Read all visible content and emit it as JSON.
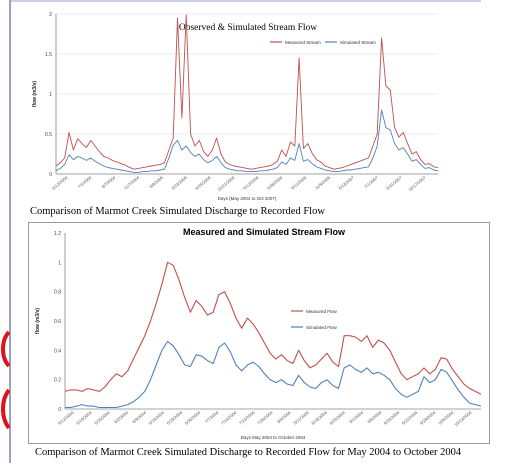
{
  "colors": {
    "measured": "#c0504d",
    "simulated": "#4f81bd",
    "frame_rule": "#9aa0c8",
    "accent_red": "#e0121b"
  },
  "captions": {
    "top": "Comparison of  Marmot Creek Simulated Discharge to Recorded Flow",
    "bottom": "Comparison of  Marmot Creek Simulated Discharge to Recorded Flow for May 2004 to October 2004"
  },
  "chart_data": [
    {
      "type": "line",
      "title": "Observed & Simulated Stream Flow",
      "xlabel": "Days (May 2004 to Oct 2007)",
      "ylabel": "flow (m3/s)",
      "ylim": [
        0,
        2
      ],
      "y_ticks": [
        "0",
        "0.5",
        "1",
        "1.5",
        "2"
      ],
      "x_ticks": [
        "5/12/2004",
        "7/1/2004",
        "9/7/2004",
        "11/7/2004",
        "5/9/2005",
        "6/23/2005",
        "8/25/2005",
        "10/21/2005",
        "5/12/2006",
        "6/28/2006",
        "9/11/2006",
        "11/9/2006",
        "5/13/2007",
        "7/1/2007",
        "8/31/2007",
        "10/17/2007"
      ],
      "legend": "top-right",
      "series": [
        {
          "name": "Measured Stream",
          "values": [
            0.1,
            0.14,
            0.2,
            0.52,
            0.3,
            0.44,
            0.38,
            0.33,
            0.42,
            0.35,
            0.28,
            0.22,
            0.2,
            0.17,
            0.15,
            0.13,
            0.11,
            0.08,
            0.06,
            0.07,
            0.08,
            0.09,
            0.1,
            0.11,
            0.12,
            0.14,
            0.3,
            0.45,
            1.95,
            0.7,
            1.99,
            0.5,
            0.35,
            0.42,
            0.28,
            0.22,
            0.3,
            0.45,
            0.25,
            0.15,
            0.12,
            0.1,
            0.09,
            0.08,
            0.07,
            0.06,
            0.07,
            0.08,
            0.09,
            0.1,
            0.12,
            0.16,
            0.3,
            0.22,
            0.4,
            0.35,
            1.45,
            0.32,
            0.38,
            0.26,
            0.18,
            0.15,
            0.1,
            0.08,
            0.06,
            0.07,
            0.08,
            0.1,
            0.12,
            0.14,
            0.16,
            0.18,
            0.2,
            0.35,
            0.5,
            1.7,
            1.1,
            1.05,
            0.58,
            0.46,
            0.52,
            0.38,
            0.25,
            0.28,
            0.18,
            0.12,
            0.13,
            0.09,
            0.08
          ]
        },
        {
          "name": "Simulated Stream",
          "values": [
            0.04,
            0.07,
            0.12,
            0.24,
            0.18,
            0.22,
            0.2,
            0.17,
            0.2,
            0.16,
            0.13,
            0.1,
            0.08,
            0.07,
            0.06,
            0.05,
            0.04,
            0.03,
            0.02,
            0.02,
            0.03,
            0.03,
            0.04,
            0.04,
            0.05,
            0.06,
            0.2,
            0.36,
            0.42,
            0.3,
            0.35,
            0.27,
            0.22,
            0.25,
            0.18,
            0.14,
            0.17,
            0.22,
            0.14,
            0.08,
            0.06,
            0.05,
            0.04,
            0.04,
            0.03,
            0.03,
            0.03,
            0.04,
            0.04,
            0.05,
            0.06,
            0.08,
            0.15,
            0.12,
            0.2,
            0.17,
            0.38,
            0.16,
            0.18,
            0.13,
            0.09,
            0.07,
            0.05,
            0.04,
            0.03,
            0.03,
            0.04,
            0.05,
            0.05,
            0.06,
            0.07,
            0.08,
            0.09,
            0.2,
            0.35,
            0.8,
            0.58,
            0.55,
            0.38,
            0.3,
            0.33,
            0.25,
            0.16,
            0.18,
            0.12,
            0.07,
            0.08,
            0.05,
            0.04
          ]
        }
      ]
    },
    {
      "type": "line",
      "title": "Measured and Simulated Stream Flow",
      "xlabel": "Days May 2004 to October 2004",
      "ylabel": "flow (m3/s)",
      "ylim": [
        0,
        1.2
      ],
      "y_ticks": [
        "0",
        "0.2",
        "0.4",
        "0.6",
        "0.8",
        "1",
        "1.2"
      ],
      "x_ticks": [
        "5/12/2004",
        "5/19/2004",
        "5/26/2004",
        "6/2/2004",
        "6/9/2004",
        "6/16/2004",
        "6/23/2004",
        "6/30/2004",
        "7/7/2004",
        "7/14/2004",
        "7/21/2004",
        "7/28/2004",
        "8/4/2004",
        "8/11/2004",
        "8/18/2004",
        "8/25/2004",
        "9/1/2004",
        "9/8/2004",
        "9/15/2004",
        "9/22/2004",
        "9/29/2004",
        "10/6/2004",
        "10/13/2004"
      ],
      "legend": "center-right",
      "series": [
        {
          "name": "Measured Flow",
          "values": [
            0.12,
            0.13,
            0.13,
            0.12,
            0.14,
            0.13,
            0.12,
            0.15,
            0.2,
            0.24,
            0.22,
            0.26,
            0.34,
            0.42,
            0.5,
            0.6,
            0.72,
            0.85,
            1.0,
            0.98,
            0.88,
            0.76,
            0.66,
            0.74,
            0.7,
            0.64,
            0.66,
            0.78,
            0.8,
            0.72,
            0.62,
            0.55,
            0.62,
            0.58,
            0.52,
            0.45,
            0.38,
            0.34,
            0.37,
            0.33,
            0.31,
            0.4,
            0.33,
            0.28,
            0.3,
            0.34,
            0.38,
            0.32,
            0.29,
            0.5,
            0.5,
            0.49,
            0.46,
            0.5,
            0.42,
            0.47,
            0.45,
            0.4,
            0.32,
            0.24,
            0.2,
            0.22,
            0.24,
            0.28,
            0.24,
            0.27,
            0.35,
            0.34,
            0.27,
            0.22,
            0.17,
            0.14,
            0.12,
            0.1
          ]
        },
        {
          "name": "Simulated Flow",
          "values": [
            0.01,
            0.01,
            0.02,
            0.03,
            0.02,
            0.02,
            0.01,
            0.01,
            0.01,
            0.01,
            0.02,
            0.03,
            0.05,
            0.08,
            0.12,
            0.2,
            0.3,
            0.4,
            0.46,
            0.43,
            0.37,
            0.3,
            0.29,
            0.37,
            0.36,
            0.33,
            0.31,
            0.42,
            0.45,
            0.39,
            0.3,
            0.26,
            0.3,
            0.32,
            0.29,
            0.24,
            0.2,
            0.18,
            0.2,
            0.17,
            0.16,
            0.23,
            0.18,
            0.15,
            0.14,
            0.18,
            0.2,
            0.16,
            0.14,
            0.28,
            0.3,
            0.27,
            0.25,
            0.28,
            0.24,
            0.25,
            0.23,
            0.2,
            0.14,
            0.1,
            0.08,
            0.1,
            0.12,
            0.22,
            0.18,
            0.2,
            0.27,
            0.25,
            0.19,
            0.13,
            0.08,
            0.04,
            0.03,
            0.02
          ]
        }
      ]
    }
  ]
}
